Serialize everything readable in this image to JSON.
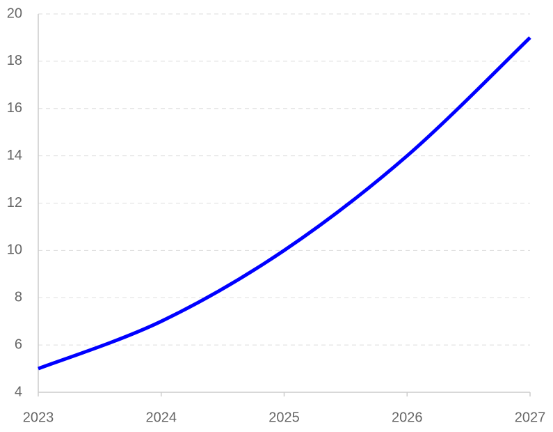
{
  "chart_data": {
    "type": "line",
    "x": [
      2023,
      2024,
      2025,
      2026,
      2027
    ],
    "series": [
      {
        "color": "#0000ff",
        "values": [
          5,
          7,
          10,
          14,
          19
        ]
      }
    ],
    "xlim": [
      2023,
      2027
    ],
    "xticks": [
      2023,
      2024,
      2025,
      2026,
      2027
    ],
    "ylim": [
      4,
      20
    ],
    "yticks": [
      4,
      6,
      8,
      10,
      12,
      14,
      16,
      18,
      20
    ],
    "grid": true
  }
}
